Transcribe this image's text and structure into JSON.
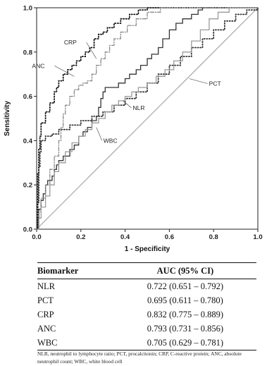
{
  "chart_data": {
    "type": "line",
    "xlabel": "1 - Specificity",
    "ylabel": "Sensitivity",
    "xlim": [
      0,
      1
    ],
    "ylim": [
      0,
      1
    ],
    "x_ticks": [
      "0.0",
      "0.2",
      "0.4",
      "0.6",
      "0.8",
      "1.0"
    ],
    "y_ticks": [
      "0.0",
      "0.2",
      "0.4",
      "0.6",
      "0.8",
      "1.0"
    ],
    "grid": false,
    "reference_line": [
      [
        0,
        0
      ],
      [
        1,
        1
      ]
    ],
    "series": [
      {
        "name": "NLR",
        "style": "solid",
        "color": "#333333",
        "points": [
          [
            0,
            0
          ],
          [
            0.005,
            0.05
          ],
          [
            0.01,
            0.09
          ],
          [
            0.02,
            0.13
          ],
          [
            0.03,
            0.16
          ],
          [
            0.04,
            0.2
          ],
          [
            0.05,
            0.22
          ],
          [
            0.07,
            0.24
          ],
          [
            0.08,
            0.27
          ],
          [
            0.09,
            0.29
          ],
          [
            0.1,
            0.31
          ],
          [
            0.12,
            0.33
          ],
          [
            0.15,
            0.36
          ],
          [
            0.17,
            0.38
          ],
          [
            0.19,
            0.42
          ],
          [
            0.21,
            0.44
          ],
          [
            0.23,
            0.46
          ],
          [
            0.25,
            0.49
          ],
          [
            0.27,
            0.51
          ],
          [
            0.28,
            0.55
          ],
          [
            0.29,
            0.59
          ],
          [
            0.3,
            0.62
          ],
          [
            0.31,
            0.64
          ],
          [
            0.34,
            0.64
          ],
          [
            0.37,
            0.66
          ],
          [
            0.4,
            0.68
          ],
          [
            0.42,
            0.7
          ],
          [
            0.45,
            0.72
          ],
          [
            0.47,
            0.74
          ],
          [
            0.5,
            0.77
          ],
          [
            0.52,
            0.79
          ],
          [
            0.55,
            0.82
          ],
          [
            0.57,
            0.86
          ],
          [
            0.6,
            0.9
          ],
          [
            0.63,
            0.93
          ],
          [
            0.66,
            0.95
          ],
          [
            0.7,
            0.97
          ],
          [
            0.73,
            0.99
          ],
          [
            0.75,
            1.0
          ],
          [
            1.0,
            1.0
          ]
        ]
      },
      {
        "name": "PCT",
        "style": "dotted",
        "color": "#333333",
        "points": [
          [
            0,
            0
          ],
          [
            0.005,
            0.12
          ],
          [
            0.01,
            0.28
          ],
          [
            0.015,
            0.35
          ],
          [
            0.02,
            0.4
          ],
          [
            0.04,
            0.42
          ],
          [
            0.07,
            0.43
          ],
          [
            0.1,
            0.45
          ],
          [
            0.15,
            0.47
          ],
          [
            0.2,
            0.49
          ],
          [
            0.25,
            0.51
          ],
          [
            0.3,
            0.53
          ],
          [
            0.35,
            0.56
          ],
          [
            0.4,
            0.59
          ],
          [
            0.45,
            0.62
          ],
          [
            0.5,
            0.66
          ],
          [
            0.55,
            0.7
          ],
          [
            0.6,
            0.74
          ],
          [
            0.65,
            0.78
          ],
          [
            0.7,
            0.82
          ],
          [
            0.75,
            0.86
          ],
          [
            0.8,
            0.9
          ],
          [
            0.85,
            0.94
          ],
          [
            0.9,
            0.97
          ],
          [
            0.95,
            0.99
          ],
          [
            1.0,
            1.0
          ]
        ]
      },
      {
        "name": "CRP",
        "style": "dotted",
        "color": "#111111",
        "points": [
          [
            0,
            0
          ],
          [
            0.005,
            0.25
          ],
          [
            0.01,
            0.36
          ],
          [
            0.015,
            0.42
          ],
          [
            0.02,
            0.48
          ],
          [
            0.04,
            0.53
          ],
          [
            0.06,
            0.57
          ],
          [
            0.08,
            0.62
          ],
          [
            0.09,
            0.64
          ],
          [
            0.1,
            0.67
          ],
          [
            0.12,
            0.7
          ],
          [
            0.14,
            0.72
          ],
          [
            0.16,
            0.74
          ],
          [
            0.18,
            0.76
          ],
          [
            0.2,
            0.78
          ],
          [
            0.22,
            0.8
          ],
          [
            0.24,
            0.82
          ],
          [
            0.26,
            0.86
          ],
          [
            0.28,
            0.88
          ],
          [
            0.3,
            0.89
          ],
          [
            0.32,
            0.91
          ],
          [
            0.35,
            0.93
          ],
          [
            0.38,
            0.95
          ],
          [
            0.42,
            0.97
          ],
          [
            0.46,
            0.99
          ],
          [
            0.5,
            1.0
          ],
          [
            1.0,
            1.0
          ]
        ]
      },
      {
        "name": "ANC",
        "style": "dash-dot",
        "color": "#888888",
        "points": [
          [
            0,
            0
          ],
          [
            0.01,
            0.08
          ],
          [
            0.02,
            0.14
          ],
          [
            0.04,
            0.2
          ],
          [
            0.06,
            0.27
          ],
          [
            0.08,
            0.33
          ],
          [
            0.1,
            0.4
          ],
          [
            0.11,
            0.46
          ],
          [
            0.12,
            0.52
          ],
          [
            0.13,
            0.56
          ],
          [
            0.15,
            0.6
          ],
          [
            0.17,
            0.63
          ],
          [
            0.19,
            0.65
          ],
          [
            0.21,
            0.66
          ],
          [
            0.23,
            0.67
          ],
          [
            0.25,
            0.7
          ],
          [
            0.27,
            0.74
          ],
          [
            0.29,
            0.77
          ],
          [
            0.31,
            0.8
          ],
          [
            0.33,
            0.83
          ],
          [
            0.35,
            0.86
          ],
          [
            0.38,
            0.89
          ],
          [
            0.41,
            0.92
          ],
          [
            0.45,
            0.95
          ],
          [
            0.5,
            0.98
          ],
          [
            0.56,
            1.0
          ],
          [
            1.0,
            1.0
          ]
        ]
      },
      {
        "name": "WBC",
        "style": "solid",
        "color": "#9a9a9a",
        "points": [
          [
            0,
            0
          ],
          [
            0.01,
            0.05
          ],
          [
            0.02,
            0.1
          ],
          [
            0.04,
            0.15
          ],
          [
            0.06,
            0.2
          ],
          [
            0.08,
            0.26
          ],
          [
            0.1,
            0.3
          ],
          [
            0.13,
            0.35
          ],
          [
            0.16,
            0.39
          ],
          [
            0.19,
            0.42
          ],
          [
            0.22,
            0.45
          ],
          [
            0.25,
            0.48
          ],
          [
            0.28,
            0.5
          ],
          [
            0.31,
            0.53
          ],
          [
            0.34,
            0.56
          ],
          [
            0.37,
            0.58
          ],
          [
            0.4,
            0.6
          ],
          [
            0.43,
            0.62
          ],
          [
            0.46,
            0.64
          ],
          [
            0.5,
            0.66
          ],
          [
            0.54,
            0.69
          ],
          [
            0.58,
            0.72
          ],
          [
            0.62,
            0.76
          ],
          [
            0.66,
            0.8
          ],
          [
            0.7,
            0.85
          ],
          [
            0.74,
            0.9
          ],
          [
            0.78,
            0.95
          ],
          [
            0.82,
            0.98
          ],
          [
            0.87,
            1.0
          ],
          [
            1.0,
            1.0
          ]
        ]
      }
    ],
    "annotations": [
      {
        "text": "CRP",
        "point": [
          0.27,
          0.77
        ]
      },
      {
        "text": "ANC",
        "point": [
          0.17,
          0.69
        ]
      },
      {
        "text": "PCT",
        "point": [
          0.69,
          0.68
        ]
      },
      {
        "text": "NLR",
        "point": [
          0.39,
          0.58
        ]
      },
      {
        "text": "WBC",
        "point": [
          0.27,
          0.46
        ]
      }
    ]
  },
  "table": {
    "headers": [
      "Biomarker",
      "AUC (95% CI)"
    ],
    "rows": [
      [
        "NLR",
        "0.722 (0.651 – 0.792)"
      ],
      [
        "PCT",
        "0.695 (0.611 – 0.780)"
      ],
      [
        "CRP",
        "0.832 (0.775 – 0.889)"
      ],
      [
        "ANC",
        "0.793 (0.731 – 0.856)"
      ],
      [
        "WBC",
        "0.705 (0.629 – 0.781)"
      ]
    ]
  },
  "footnote": "NLR, neutrophil to lymphocyte ratio; PCT, procalcitonin; CRP, C-reactive protein; ANC, absolute neutrophil count; WBC, white blood cell"
}
